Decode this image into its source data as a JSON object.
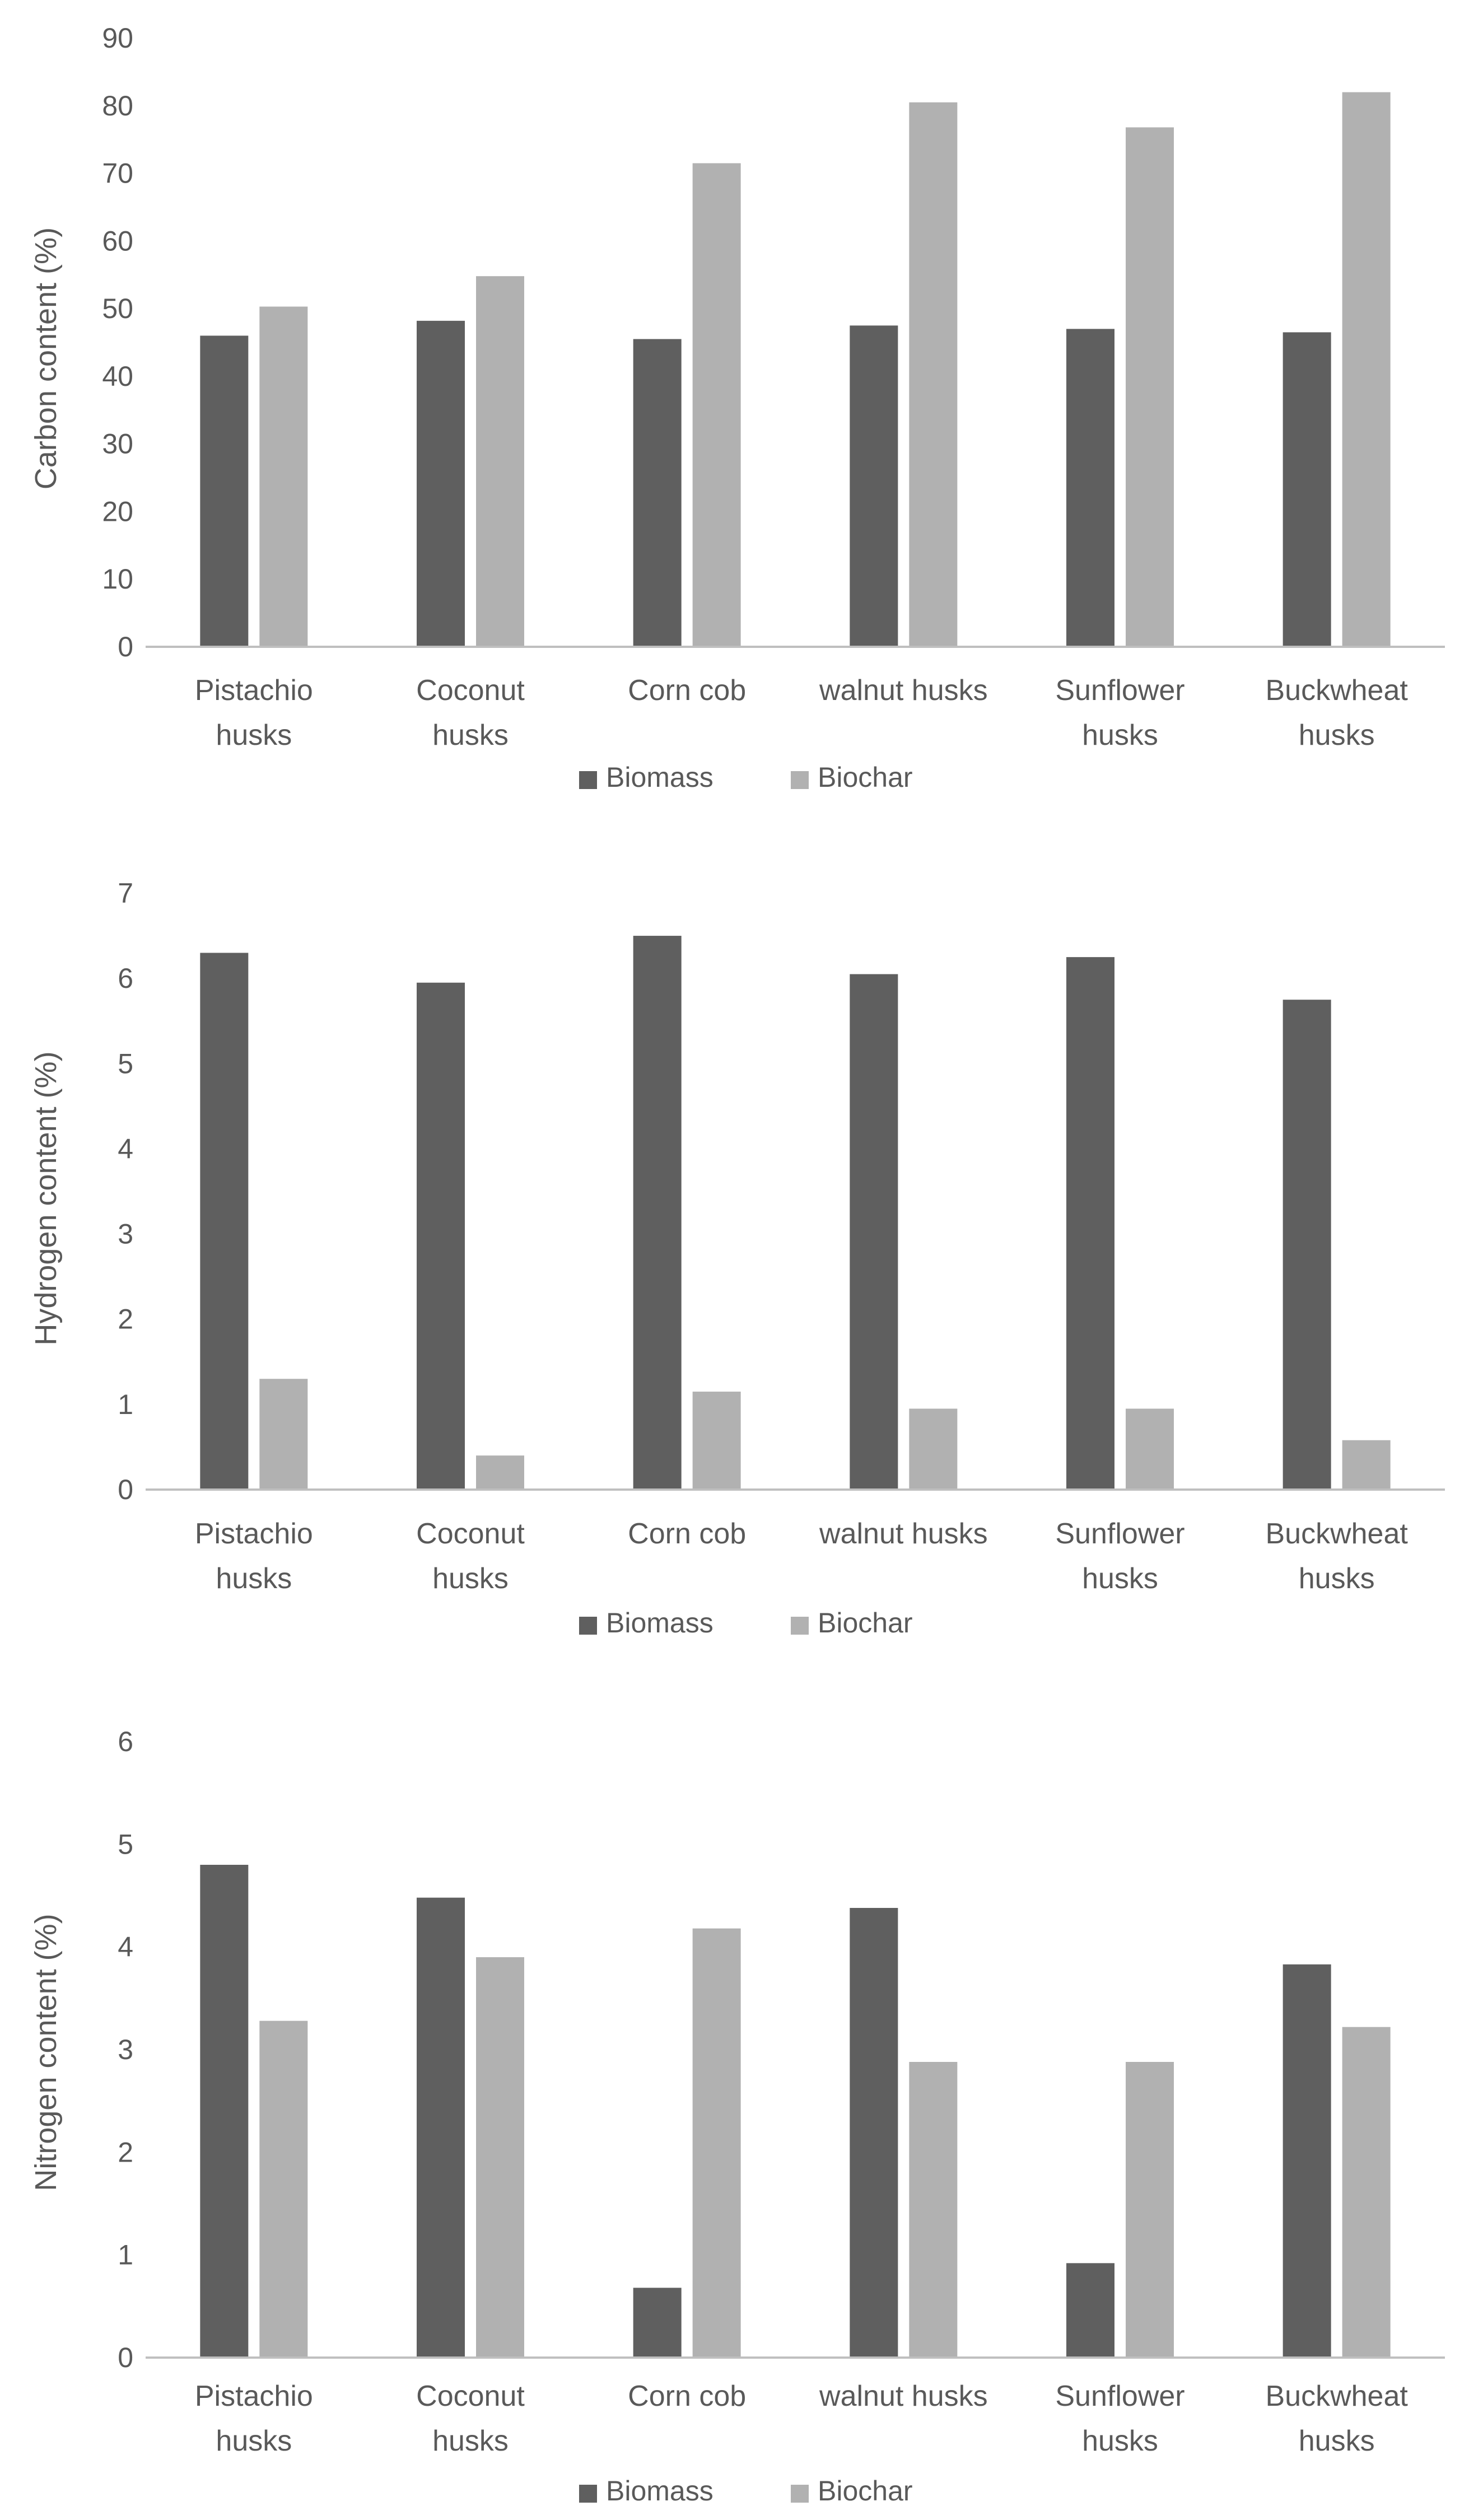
{
  "colors": {
    "biomass": "#5f5f5f",
    "biochar": "#b1b1b1",
    "axis": "#bfbfbf",
    "text": "#595959"
  },
  "chart_data": [
    {
      "type": "bar",
      "ylabel": "Carbon content (%)",
      "ylim": [
        0,
        90
      ],
      "yticks": [
        0,
        10,
        20,
        30,
        40,
        50,
        60,
        70,
        80,
        90
      ],
      "grid": false,
      "legend": "bottom",
      "categories": [
        [
          "Pistachio",
          "husks"
        ],
        [
          "Coconut",
          "husks"
        ],
        [
          "Corn cob"
        ],
        [
          "walnut husks"
        ],
        [
          "Sunflower",
          "husks"
        ],
        [
          "Buckwheat",
          "husks"
        ]
      ],
      "series": [
        {
          "name": "Biomass",
          "values": [
            46.0,
            48.2,
            45.5,
            47.5,
            47.0,
            46.5
          ]
        },
        {
          "name": "Biochar",
          "values": [
            50.3,
            54.8,
            71.5,
            80.5,
            76.8,
            82.0
          ]
        }
      ]
    },
    {
      "type": "bar",
      "ylabel": "Hydrogen content (%)",
      "ylim": [
        0,
        7
      ],
      "yticks": [
        0,
        1,
        2,
        3,
        4,
        5,
        6,
        7
      ],
      "grid": false,
      "legend": "bottom",
      "categories": [
        [
          "Pistachio",
          "husks"
        ],
        [
          "Coconut",
          "husks"
        ],
        [
          "Corn cob"
        ],
        [
          "walnut husks"
        ],
        [
          "Sunflower",
          "husks"
        ],
        [
          "Buckwheat",
          "husks"
        ]
      ],
      "series": [
        {
          "name": "Biomass",
          "values": [
            6.3,
            5.95,
            6.5,
            6.05,
            6.25,
            5.75
          ]
        },
        {
          "name": "Biochar",
          "values": [
            1.3,
            0.4,
            1.15,
            0.95,
            0.95,
            0.58
          ]
        }
      ]
    },
    {
      "type": "bar",
      "ylabel": "Nitrogen content (%)",
      "ylim": [
        0,
        6
      ],
      "yticks": [
        0,
        1,
        2,
        3,
        4,
        5,
        6
      ],
      "grid": false,
      "legend": "bottom",
      "categories": [
        [
          "Pistachio",
          "husks"
        ],
        [
          "Coconut",
          "husks"
        ],
        [
          "Corn cob"
        ],
        [
          "walnut husks"
        ],
        [
          "Sunflower",
          "husks"
        ],
        [
          "Buckwheat",
          "husks"
        ]
      ],
      "series": [
        {
          "name": "Biomass",
          "values": [
            4.8,
            4.48,
            0.68,
            4.38,
            0.92,
            3.83
          ]
        },
        {
          "name": "Biochar",
          "values": [
            3.28,
            3.9,
            4.18,
            2.88,
            2.88,
            3.22
          ]
        }
      ]
    }
  ]
}
